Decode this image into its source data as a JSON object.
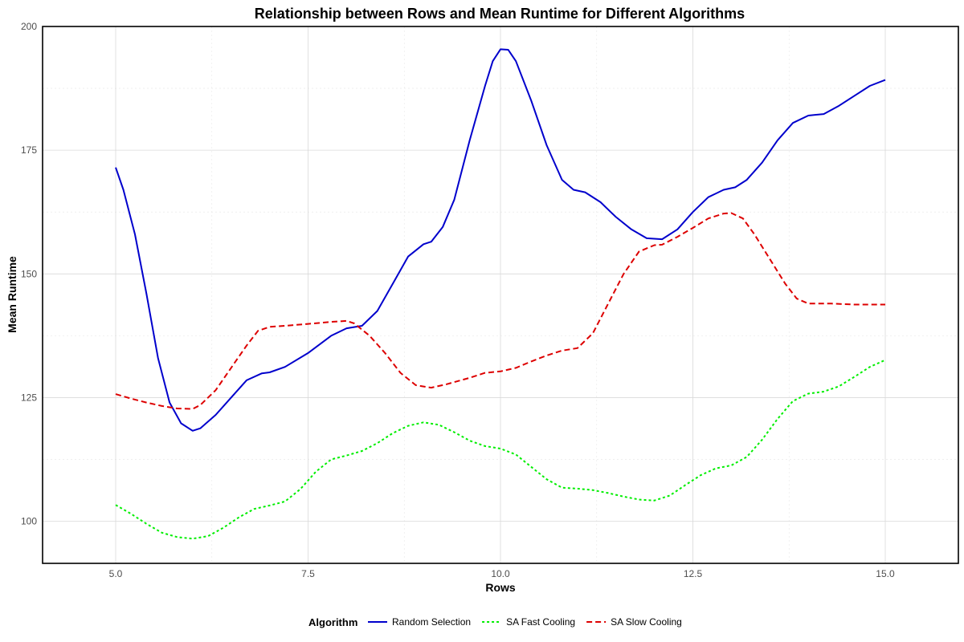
{
  "chart_data": {
    "type": "line",
    "title": "Relationship between Rows and Mean Runtime for Different Algorithms",
    "xlabel": "Rows",
    "ylabel": "Mean Runtime",
    "xlim": [
      4.05,
      15.95
    ],
    "ylim": [
      91.5,
      200
    ],
    "x_ticks": [
      5.0,
      7.5,
      10.0,
      12.5,
      15.0
    ],
    "x_tick_labels": [
      "5.0",
      "7.5",
      "10.0",
      "12.5",
      "15.0"
    ],
    "y_ticks": [
      100,
      125,
      150,
      175,
      200
    ],
    "y_tick_labels": [
      "100",
      "125",
      "150",
      "175",
      "200"
    ],
    "grid": true,
    "legend": {
      "title": "Algorithm",
      "position": "bottom"
    },
    "series": [
      {
        "name": "Random Selection",
        "color": "#0000cc",
        "line_style": "solid",
        "points": [
          [
            5.0,
            171.5
          ],
          [
            5.1,
            167
          ],
          [
            5.25,
            158
          ],
          [
            5.4,
            146
          ],
          [
            5.55,
            133
          ],
          [
            5.7,
            124
          ],
          [
            5.85,
            119.8
          ],
          [
            6.0,
            118.3
          ],
          [
            6.1,
            118.8
          ],
          [
            6.3,
            121.5
          ],
          [
            6.5,
            125
          ],
          [
            6.7,
            128.5
          ],
          [
            6.9,
            129.9
          ],
          [
            7.0,
            130.1
          ],
          [
            7.2,
            131.2
          ],
          [
            7.5,
            134
          ],
          [
            7.8,
            137.5
          ],
          [
            8.0,
            139
          ],
          [
            8.2,
            139.5
          ],
          [
            8.4,
            142.5
          ],
          [
            8.6,
            148
          ],
          [
            8.8,
            153.5
          ],
          [
            9.0,
            156
          ],
          [
            9.1,
            156.5
          ],
          [
            9.25,
            159.5
          ],
          [
            9.4,
            165
          ],
          [
            9.6,
            177
          ],
          [
            9.8,
            188
          ],
          [
            9.9,
            193
          ],
          [
            10.0,
            195.4
          ],
          [
            10.1,
            195.3
          ],
          [
            10.2,
            193
          ],
          [
            10.4,
            185
          ],
          [
            10.6,
            176
          ],
          [
            10.8,
            169
          ],
          [
            10.95,
            167
          ],
          [
            11.1,
            166.5
          ],
          [
            11.3,
            164.5
          ],
          [
            11.5,
            161.5
          ],
          [
            11.7,
            159
          ],
          [
            11.9,
            157.2
          ],
          [
            12.1,
            157
          ],
          [
            12.3,
            159
          ],
          [
            12.5,
            162.5
          ],
          [
            12.7,
            165.5
          ],
          [
            12.9,
            167
          ],
          [
            13.05,
            167.5
          ],
          [
            13.2,
            169
          ],
          [
            13.4,
            172.5
          ],
          [
            13.6,
            177
          ],
          [
            13.8,
            180.5
          ],
          [
            14.0,
            182
          ],
          [
            14.2,
            182.3
          ],
          [
            14.4,
            184
          ],
          [
            14.6,
            186
          ],
          [
            14.8,
            188
          ],
          [
            15.0,
            189.2
          ]
        ]
      },
      {
        "name": "SA Fast Cooling",
        "color": "#00ee00",
        "line_style": "dotted",
        "points": [
          [
            5.0,
            103.3
          ],
          [
            5.2,
            101.5
          ],
          [
            5.4,
            99.5
          ],
          [
            5.6,
            97.7
          ],
          [
            5.8,
            96.8
          ],
          [
            6.0,
            96.5
          ],
          [
            6.2,
            97
          ],
          [
            6.4,
            98.7
          ],
          [
            6.6,
            100.8
          ],
          [
            6.8,
            102.5
          ],
          [
            7.0,
            103.2
          ],
          [
            7.2,
            104
          ],
          [
            7.4,
            106.5
          ],
          [
            7.6,
            110
          ],
          [
            7.8,
            112.5
          ],
          [
            8.0,
            113.3
          ],
          [
            8.2,
            114.2
          ],
          [
            8.4,
            115.8
          ],
          [
            8.6,
            117.8
          ],
          [
            8.8,
            119.3
          ],
          [
            9.0,
            120
          ],
          [
            9.2,
            119.5
          ],
          [
            9.4,
            118
          ],
          [
            9.6,
            116.3
          ],
          [
            9.8,
            115.2
          ],
          [
            10.0,
            114.7
          ],
          [
            10.2,
            113.5
          ],
          [
            10.4,
            111
          ],
          [
            10.6,
            108.5
          ],
          [
            10.8,
            106.8
          ],
          [
            11.0,
            106.6
          ],
          [
            11.2,
            106.3
          ],
          [
            11.4,
            105.7
          ],
          [
            11.6,
            105
          ],
          [
            11.8,
            104.4
          ],
          [
            12.0,
            104.2
          ],
          [
            12.2,
            105.2
          ],
          [
            12.4,
            107.3
          ],
          [
            12.6,
            109.3
          ],
          [
            12.8,
            110.7
          ],
          [
            13.0,
            111.3
          ],
          [
            13.2,
            113
          ],
          [
            13.4,
            116.5
          ],
          [
            13.6,
            120.7
          ],
          [
            13.8,
            124.3
          ],
          [
            14.0,
            125.8
          ],
          [
            14.2,
            126.2
          ],
          [
            14.4,
            127.3
          ],
          [
            14.6,
            129.2
          ],
          [
            14.8,
            131.2
          ],
          [
            15.0,
            132.6
          ]
        ]
      },
      {
        "name": "SA Slow Cooling",
        "color": "#dd0000",
        "line_style": "dashed",
        "points": [
          [
            5.0,
            125.7
          ],
          [
            5.2,
            124.8
          ],
          [
            5.4,
            124
          ],
          [
            5.6,
            123.3
          ],
          [
            5.8,
            122.8
          ],
          [
            6.0,
            122.7
          ],
          [
            6.1,
            123.5
          ],
          [
            6.3,
            126.5
          ],
          [
            6.5,
            131
          ],
          [
            6.7,
            135.5
          ],
          [
            6.85,
            138.5
          ],
          [
            7.0,
            139.3
          ],
          [
            7.2,
            139.5
          ],
          [
            7.5,
            139.9
          ],
          [
            7.8,
            140.3
          ],
          [
            8.0,
            140.5
          ],
          [
            8.1,
            140
          ],
          [
            8.3,
            137.5
          ],
          [
            8.5,
            134
          ],
          [
            8.7,
            130
          ],
          [
            8.9,
            127.5
          ],
          [
            9.1,
            127
          ],
          [
            9.3,
            127.7
          ],
          [
            9.6,
            129
          ],
          [
            9.8,
            130
          ],
          [
            10.0,
            130.3
          ],
          [
            10.2,
            131
          ],
          [
            10.4,
            132.3
          ],
          [
            10.6,
            133.5
          ],
          [
            10.8,
            134.5
          ],
          [
            11.0,
            135
          ],
          [
            11.2,
            138
          ],
          [
            11.4,
            144
          ],
          [
            11.6,
            150
          ],
          [
            11.8,
            154.5
          ],
          [
            12.0,
            155.8
          ],
          [
            12.1,
            155.9
          ],
          [
            12.3,
            157.5
          ],
          [
            12.5,
            159.3
          ],
          [
            12.7,
            161.2
          ],
          [
            12.9,
            162.2
          ],
          [
            13.0,
            162.3
          ],
          [
            13.15,
            161.2
          ],
          [
            13.3,
            158
          ],
          [
            13.5,
            153
          ],
          [
            13.7,
            148
          ],
          [
            13.85,
            145
          ],
          [
            14.0,
            144
          ],
          [
            14.3,
            144
          ],
          [
            14.6,
            143.8
          ],
          [
            15.0,
            143.8
          ]
        ]
      }
    ]
  }
}
